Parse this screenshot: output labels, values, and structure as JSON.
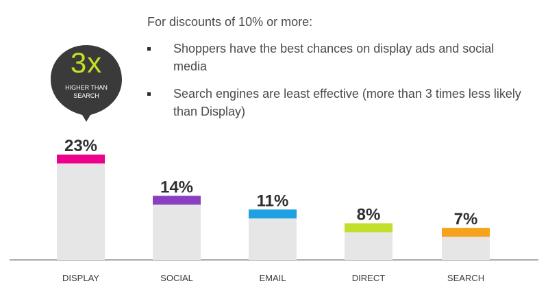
{
  "headline": "For discounts of 10% or more:",
  "bullets": [
    "Shoppers have the best chances on display ads and social media",
    "Search engines are least effective (more than 3 times less likely than Display)"
  ],
  "badge": {
    "value": "3x",
    "caption": "HIGHER THAN SEARCH",
    "bg_color": "#3a3a3a",
    "value_color": "#c7e021"
  },
  "chart_data": {
    "type": "bar",
    "categories": [
      "DISPLAY",
      "SOCIAL",
      "EMAIL",
      "DIRECT",
      "SEARCH"
    ],
    "values": [
      23,
      14,
      11,
      8,
      7
    ],
    "value_labels": [
      "23%",
      "14%",
      "11%",
      "8%",
      "7%"
    ],
    "accent_colors": [
      "#ec008c",
      "#8a3fc1",
      "#1da1e3",
      "#c2df2a",
      "#f7a21b"
    ],
    "bar_color": "#e6e6e6",
    "ylim": [
      0,
      23
    ],
    "grid": false,
    "title": "",
    "xlabel": "",
    "ylabel": ""
  }
}
